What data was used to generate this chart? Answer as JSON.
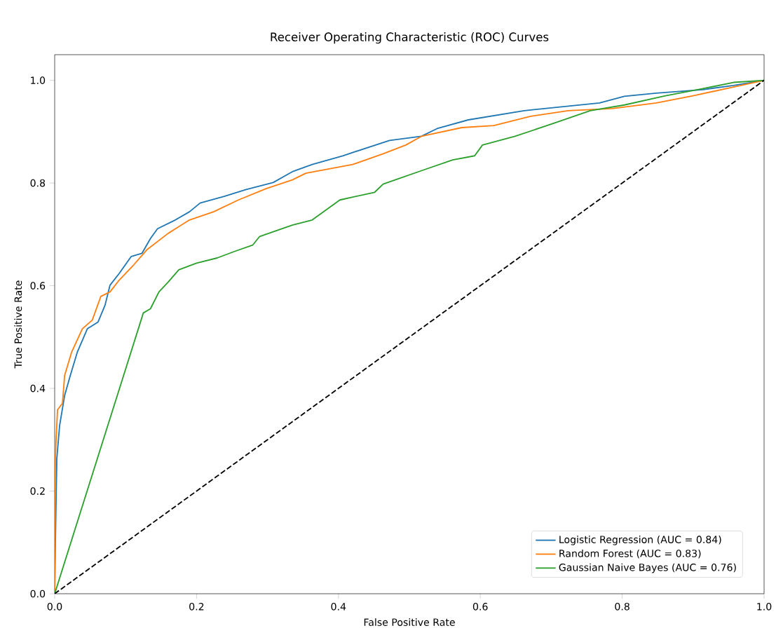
{
  "chart_data": {
    "type": "line",
    "title": "Receiver Operating Characteristic (ROC) Curves",
    "xlabel": "False Positive Rate",
    "ylabel": "True Positive Rate",
    "xlim": [
      0,
      1
    ],
    "ylim": [
      0,
      1.05
    ],
    "xticks": [
      {
        "value": 0,
        "label": "0.0"
      },
      0.2,
      0.4,
      0.6,
      0.8,
      {
        "value": 1,
        "label": "1.0"
      }
    ],
    "yticks": [
      {
        "value": 0,
        "label": "0.0"
      },
      0.2,
      0.4,
      0.6,
      0.8,
      {
        "value": 1,
        "label": "1.0"
      }
    ],
    "legend": "bottom right",
    "series": [
      {
        "name": "Logistic Regression (AUC = 0.84)",
        "color": "#1f77b4",
        "x": [
          0,
          0.001,
          0.003,
          0.007,
          0.014,
          0.022,
          0.032,
          0.046,
          0.061,
          0.071,
          0.078,
          0.091,
          0.108,
          0.123,
          0.135,
          0.145,
          0.17,
          0.19,
          0.205,
          0.239,
          0.269,
          0.308,
          0.335,
          0.363,
          0.406,
          0.472,
          0.517,
          0.539,
          0.583,
          0.662,
          0.768,
          0.803,
          0.848,
          0.914,
          0.957,
          1
        ],
        "values": [
          0,
          0.1,
          0.263,
          0.328,
          0.386,
          0.425,
          0.471,
          0.516,
          0.529,
          0.562,
          0.601,
          0.624,
          0.657,
          0.663,
          0.692,
          0.711,
          0.728,
          0.744,
          0.761,
          0.774,
          0.787,
          0.801,
          0.822,
          0.836,
          0.853,
          0.883,
          0.891,
          0.906,
          0.923,
          0.941,
          0.956,
          0.969,
          0.975,
          0.982,
          0.99,
          1
        ]
      },
      {
        "name": "Random Forest (AUC = 0.83)",
        "color": "#ff7f0e",
        "x": [
          0,
          0.001,
          0.004,
          0.011,
          0.014,
          0.024,
          0.039,
          0.053,
          0.065,
          0.078,
          0.091,
          0.111,
          0.13,
          0.16,
          0.19,
          0.224,
          0.259,
          0.298,
          0.335,
          0.354,
          0.42,
          0.463,
          0.495,
          0.517,
          0.574,
          0.619,
          0.671,
          0.724,
          0.786,
          0.848,
          0.9,
          0.957,
          1
        ],
        "values": [
          0,
          0.269,
          0.358,
          0.371,
          0.425,
          0.471,
          0.516,
          0.533,
          0.579,
          0.588,
          0.611,
          0.64,
          0.67,
          0.702,
          0.728,
          0.744,
          0.767,
          0.789,
          0.806,
          0.819,
          0.836,
          0.857,
          0.874,
          0.891,
          0.908,
          0.912,
          0.93,
          0.941,
          0.945,
          0.956,
          0.97,
          0.987,
          1
        ]
      },
      {
        "name": "Gaussian Naive Bayes (AUC = 0.76)",
        "color": "#2ca02c",
        "x": [
          0,
          0.125,
          0.135,
          0.147,
          0.16,
          0.175,
          0.2,
          0.229,
          0.254,
          0.279,
          0.289,
          0.308,
          0.335,
          0.363,
          0.402,
          0.451,
          0.463,
          0.517,
          0.561,
          0.592,
          0.603,
          0.649,
          0.707,
          0.755,
          0.803,
          0.861,
          0.914,
          0.957,
          1
        ],
        "values": [
          0,
          0.547,
          0.555,
          0.588,
          0.607,
          0.631,
          0.644,
          0.654,
          0.667,
          0.679,
          0.696,
          0.705,
          0.718,
          0.728,
          0.767,
          0.782,
          0.798,
          0.824,
          0.845,
          0.853,
          0.874,
          0.891,
          0.918,
          0.941,
          0.952,
          0.97,
          0.984,
          0.996,
          1
        ]
      },
      {
        "color": "#000000",
        "line_style": "dashed",
        "x": [
          0,
          1
        ],
        "values": [
          0,
          1
        ]
      }
    ]
  }
}
